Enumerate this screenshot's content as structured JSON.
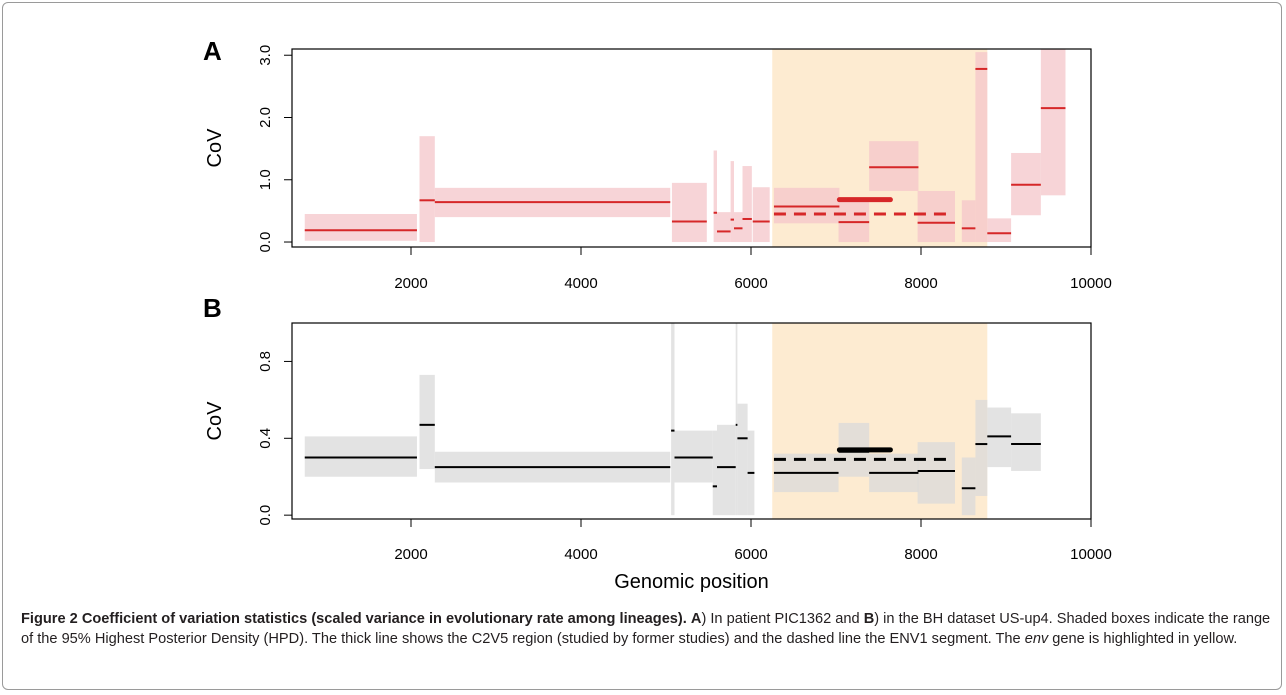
{
  "chart_data": [
    {
      "type": "box-segment",
      "panel_label": "A",
      "title": "",
      "xlabel": "",
      "ylabel": "CoV",
      "xlim": [
        600,
        10000
      ],
      "ylim": [
        0,
        3.0
      ],
      "xticks": [
        "2000",
        "4000",
        "6000",
        "8000",
        "10000"
      ],
      "yticks": [
        "0.0",
        "1.0",
        "2.0",
        "3.0"
      ],
      "yticks_values": [
        0,
        1,
        2,
        3
      ],
      "highlight": {
        "x0": 6250,
        "x1": 8780,
        "color": "#fdebd1",
        "label": "env gene"
      },
      "box_color": "#f4c5c9",
      "line_color": "#d62728",
      "segments": [
        {
          "x0": 750,
          "x1": 2070,
          "median": 0.19,
          "lo": 0.02,
          "hi": 0.45
        },
        {
          "x0": 2100,
          "x1": 2280,
          "median": 0.67,
          "lo": 0.0,
          "hi": 1.7
        },
        {
          "x0": 2280,
          "x1": 5050,
          "median": 0.64,
          "lo": 0.4,
          "hi": 0.87
        },
        {
          "x0": 5070,
          "x1": 5480,
          "median": 0.33,
          "lo": 0.0,
          "hi": 0.95
        },
        {
          "x0": 5560,
          "x1": 5600,
          "median": 0.47,
          "lo": 0.0,
          "hi": 1.47
        },
        {
          "x0": 5600,
          "x1": 5760,
          "median": 0.17,
          "lo": 0.0,
          "hi": 0.48
        },
        {
          "x0": 5760,
          "x1": 5800,
          "median": 0.36,
          "lo": 0.0,
          "hi": 1.3
        },
        {
          "x0": 5800,
          "x1": 5900,
          "median": 0.22,
          "lo": 0.0,
          "hi": 0.48
        },
        {
          "x0": 5900,
          "x1": 6010,
          "median": 0.37,
          "lo": 0.0,
          "hi": 1.22
        },
        {
          "x0": 6020,
          "x1": 6220,
          "median": 0.33,
          "lo": 0.0,
          "hi": 0.88
        },
        {
          "x0": 6270,
          "x1": 7040,
          "median": 0.57,
          "lo": 0.3,
          "hi": 0.87
        },
        {
          "x0": 7030,
          "x1": 7390,
          "median": 0.32,
          "lo": 0.0,
          "hi": 0.65
        },
        {
          "x0": 7390,
          "x1": 7970,
          "median": 1.2,
          "lo": 0.82,
          "hi": 1.62
        },
        {
          "x0": 7960,
          "x1": 8400,
          "median": 0.31,
          "lo": 0.0,
          "hi": 0.82
        },
        {
          "x0": 8480,
          "x1": 8640,
          "median": 0.22,
          "lo": 0.0,
          "hi": 0.67
        },
        {
          "x0": 8640,
          "x1": 8780,
          "median": 2.78,
          "lo": 0.0,
          "hi": 3.05
        },
        {
          "x0": 8780,
          "x1": 9060,
          "median": 0.14,
          "lo": 0.0,
          "hi": 0.38
        },
        {
          "x0": 9060,
          "x1": 9410,
          "median": 0.92,
          "lo": 0.43,
          "hi": 1.43
        },
        {
          "x0": 9410,
          "x1": 9700,
          "median": 2.15,
          "lo": 0.75,
          "hi": 3.2
        }
      ],
      "thick_segment": {
        "x0": 7040,
        "x1": 7640,
        "value": 0.68,
        "label": "C2V5 region"
      },
      "dashed_segment": {
        "x0": 6270,
        "x1": 8380,
        "value": 0.45,
        "label": "ENV1 segment"
      }
    },
    {
      "type": "box-segment",
      "panel_label": "B",
      "title": "",
      "xlabel": "Genomic position",
      "ylabel": "CoV",
      "xlim": [
        600,
        10000
      ],
      "ylim": [
        0,
        0.8
      ],
      "xticks": [
        "2000",
        "4000",
        "6000",
        "8000",
        "10000"
      ],
      "yticks": [
        "0.0",
        "0.4",
        "0.8"
      ],
      "yticks_values": [
        0,
        0.4,
        0.8
      ],
      "highlight": {
        "x0": 6250,
        "x1": 8780,
        "color": "#fdebd1",
        "label": "env gene"
      },
      "box_color": "#d9d9d9",
      "line_color": "#000000",
      "segments": [
        {
          "x0": 750,
          "x1": 2070,
          "median": 0.3,
          "lo": 0.2,
          "hi": 0.41
        },
        {
          "x0": 2100,
          "x1": 2280,
          "median": 0.47,
          "lo": 0.24,
          "hi": 0.73
        },
        {
          "x0": 2280,
          "x1": 5050,
          "median": 0.25,
          "lo": 0.17,
          "hi": 0.33
        },
        {
          "x0": 5060,
          "x1": 5100,
          "median": 0.44,
          "lo": 0.0,
          "hi": 1.0
        },
        {
          "x0": 5100,
          "x1": 5550,
          "median": 0.3,
          "lo": 0.17,
          "hi": 0.44
        },
        {
          "x0": 5550,
          "x1": 5600,
          "median": 0.15,
          "lo": 0.0,
          "hi": 0.44
        },
        {
          "x0": 5600,
          "x1": 5820,
          "median": 0.25,
          "lo": 0.0,
          "hi": 0.47
        },
        {
          "x0": 5820,
          "x1": 5840,
          "median": 0.47,
          "lo": 0.0,
          "hi": 1.0
        },
        {
          "x0": 5840,
          "x1": 5960,
          "median": 0.4,
          "lo": 0.0,
          "hi": 0.58
        },
        {
          "x0": 5960,
          "x1": 6040,
          "median": 0.22,
          "lo": 0.0,
          "hi": 0.44
        },
        {
          "x0": 6270,
          "x1": 7030,
          "median": 0.22,
          "lo": 0.12,
          "hi": 0.32
        },
        {
          "x0": 7030,
          "x1": 7390,
          "median": 0.33,
          "lo": 0.2,
          "hi": 0.48
        },
        {
          "x0": 7390,
          "x1": 7970,
          "median": 0.22,
          "lo": 0.12,
          "hi": 0.32
        },
        {
          "x0": 7960,
          "x1": 8400,
          "median": 0.23,
          "lo": 0.06,
          "hi": 0.38
        },
        {
          "x0": 8480,
          "x1": 8640,
          "median": 0.14,
          "lo": 0.0,
          "hi": 0.3
        },
        {
          "x0": 8640,
          "x1": 8780,
          "median": 0.37,
          "lo": 0.1,
          "hi": 0.6
        },
        {
          "x0": 8780,
          "x1": 9060,
          "median": 0.41,
          "lo": 0.25,
          "hi": 0.56
        },
        {
          "x0": 9060,
          "x1": 9410,
          "median": 0.37,
          "lo": 0.23,
          "hi": 0.53
        }
      ],
      "thick_segment": {
        "x0": 7040,
        "x1": 7640,
        "value": 0.34,
        "label": "C2V5 region"
      },
      "dashed_segment": {
        "x0": 6270,
        "x1": 8380,
        "value": 0.29,
        "label": "ENV1 segment"
      }
    }
  ],
  "caption": {
    "figure_label": "Figure 2",
    "title": "Coefficient of variation statistics (scaled variance in evolutionary rate among lineages).",
    "label_a": "A",
    "text_a": ") In patient PIC1362 and ",
    "label_b": "B",
    "text_b": ") in the BH dataset US-up4. Shaded boxes indicate the range of the 95% Highest Posterior Density (HPD). The thick line shows the C2V5 region (studied by former studies) and the dashed line the ENV1 segment. The ",
    "gene_name": "env",
    "text_end": " gene is highlighted in yellow."
  }
}
